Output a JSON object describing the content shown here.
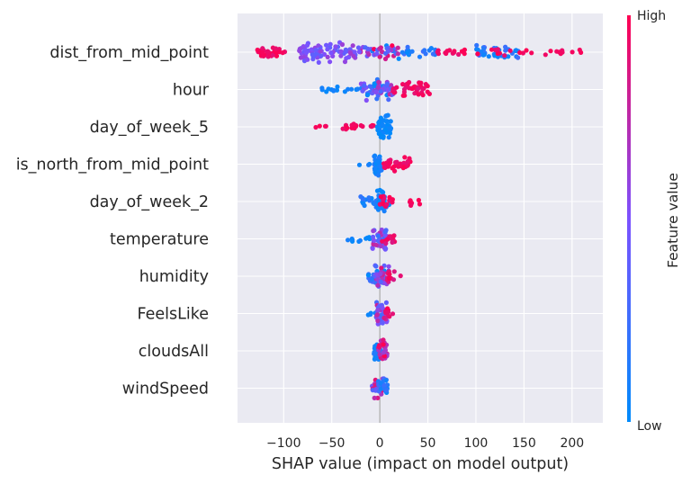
{
  "chart_data": {
    "type": "scatter",
    "subtype": "shap-beeswarm",
    "title": "",
    "xlabel": "SHAP value (impact on model output)",
    "xlim": [
      -148,
      232
    ],
    "xticks": [
      -100,
      -50,
      0,
      50,
      100,
      150,
      200
    ],
    "xtick_labels": [
      "−100",
      "−50",
      "0",
      "50",
      "100",
      "150",
      "200"
    ],
    "grid": true,
    "colorbar": {
      "label": "Feature value",
      "high_label": "High",
      "low_label": "Low",
      "low_color": "#008bfb",
      "mid_color": "#7c52ff",
      "high_color": "#ff0052"
    },
    "features": [
      {
        "name": "dist_from_mid_point",
        "groups": [
          {
            "from": -130,
            "to": -98,
            "n": 34,
            "spread": 0.5,
            "val": [
              0.9,
              1.0
            ]
          },
          {
            "from": -85,
            "to": -55,
            "n": 40,
            "spread": 0.9,
            "val": [
              0.35,
              0.6
            ]
          },
          {
            "from": -55,
            "to": -25,
            "n": 36,
            "spread": 0.85,
            "val": [
              0.35,
              0.65
            ]
          },
          {
            "from": -25,
            "to": -8,
            "n": 12,
            "spread": 0.4,
            "val": [
              0.2,
              0.9
            ]
          },
          {
            "from": -8,
            "to": 20,
            "n": 30,
            "spread": 0.55,
            "val": [
              0.0,
              1.0
            ]
          },
          {
            "from": 20,
            "to": 60,
            "n": 20,
            "spread": 0.4,
            "val": [
              0.0,
              0.3
            ]
          },
          {
            "from": 60,
            "to": 92,
            "n": 14,
            "spread": 0.35,
            "val": [
              0.9,
              1.0
            ]
          },
          {
            "from": 100,
            "to": 145,
            "n": 40,
            "spread": 0.6,
            "val": [
              0.0,
              0.3
            ]
          },
          {
            "from": 100,
            "to": 140,
            "n": 8,
            "spread": 0.5,
            "val": [
              0.9,
              1.0
            ]
          },
          {
            "from": 145,
            "to": 212,
            "n": 14,
            "spread": 0.3,
            "val": [
              0.9,
              1.0
            ]
          }
        ]
      },
      {
        "name": "hour",
        "groups": [
          {
            "from": -65,
            "to": -20,
            "n": 14,
            "spread": 0.25,
            "val": [
              0.0,
              0.1
            ]
          },
          {
            "from": -22,
            "to": 10,
            "n": 40,
            "spread": 0.9,
            "val": [
              0.0,
              0.7
            ]
          },
          {
            "from": -5,
            "to": 15,
            "n": 26,
            "spread": 0.6,
            "val": [
              0.3,
              0.8
            ]
          },
          {
            "from": 10,
            "to": 52,
            "n": 42,
            "spread": 0.65,
            "val": [
              0.88,
              1.0
            ]
          }
        ]
      },
      {
        "name": "day_of_week_5",
        "groups": [
          {
            "from": -72,
            "to": -52,
            "n": 4,
            "spread": 0.2,
            "val": [
              0.95,
              1.0
            ]
          },
          {
            "from": -40,
            "to": -5,
            "n": 18,
            "spread": 0.3,
            "val": [
              0.92,
              1.0
            ]
          },
          {
            "from": -3,
            "to": 12,
            "n": 42,
            "spread": 1.0,
            "val": [
              0.0,
              0.08
            ]
          }
        ]
      },
      {
        "name": "is_north_from_mid_point",
        "groups": [
          {
            "from": -25,
            "to": -10,
            "n": 3,
            "spread": 0.2,
            "val": [
              0.0,
              0.1
            ]
          },
          {
            "from": -6,
            "to": 2,
            "n": 40,
            "spread": 1.0,
            "val": [
              0.0,
              0.15
            ]
          },
          {
            "from": 2,
            "to": 32,
            "n": 40,
            "spread": 0.55,
            "val": [
              0.9,
              1.0
            ]
          }
        ]
      },
      {
        "name": "day_of_week_2",
        "groups": [
          {
            "from": -20,
            "to": 15,
            "n": 30,
            "spread": 0.5,
            "val": [
              0.0,
              0.2
            ]
          },
          {
            "from": -3,
            "to": 5,
            "n": 30,
            "spread": 1.0,
            "val": [
              0.0,
              0.15
            ]
          },
          {
            "from": 0,
            "to": 14,
            "n": 14,
            "spread": 0.5,
            "val": [
              0.9,
              1.0
            ]
          },
          {
            "from": 30,
            "to": 44,
            "n": 8,
            "spread": 0.45,
            "val": [
              0.92,
              1.0
            ]
          }
        ]
      },
      {
        "name": "temperature",
        "groups": [
          {
            "from": -35,
            "to": -10,
            "n": 10,
            "spread": 0.3,
            "val": [
              0.0,
              0.1
            ]
          },
          {
            "from": -8,
            "to": 8,
            "n": 45,
            "spread": 1.0,
            "val": [
              0.2,
              0.8
            ]
          },
          {
            "from": 2,
            "to": 16,
            "n": 14,
            "spread": 0.45,
            "val": [
              0.85,
              1.0
            ]
          }
        ]
      },
      {
        "name": "humidity",
        "groups": [
          {
            "from": -12,
            "to": 5,
            "n": 24,
            "spread": 0.6,
            "val": [
              0.0,
              0.3
            ]
          },
          {
            "from": -5,
            "to": 10,
            "n": 40,
            "spread": 1.0,
            "val": [
              0.3,
              0.9
            ]
          },
          {
            "from": 5,
            "to": 22,
            "n": 10,
            "spread": 0.4,
            "val": [
              0.85,
              1.0
            ]
          }
        ]
      },
      {
        "name": "FeelsLike",
        "groups": [
          {
            "from": -18,
            "to": 0,
            "n": 6,
            "spread": 0.2,
            "val": [
              0.0,
              0.1
            ]
          },
          {
            "from": -4,
            "to": 8,
            "n": 44,
            "spread": 1.0,
            "val": [
              0.2,
              0.8
            ]
          },
          {
            "from": 4,
            "to": 14,
            "n": 10,
            "spread": 0.5,
            "val": [
              0.85,
              1.0
            ]
          }
        ]
      },
      {
        "name": "cloudsAll",
        "groups": [
          {
            "from": -6,
            "to": 3,
            "n": 24,
            "spread": 0.8,
            "val": [
              0.0,
              0.15
            ]
          },
          {
            "from": -2,
            "to": 8,
            "n": 30,
            "spread": 1.0,
            "val": [
              0.6,
              1.0
            ]
          }
        ]
      },
      {
        "name": "windSpeed",
        "groups": [
          {
            "from": -8,
            "to": 3,
            "n": 28,
            "spread": 0.8,
            "val": [
              0.3,
              0.9
            ]
          },
          {
            "from": -2,
            "to": 8,
            "n": 24,
            "spread": 0.8,
            "val": [
              0.0,
              0.3
            ]
          }
        ]
      }
    ]
  }
}
